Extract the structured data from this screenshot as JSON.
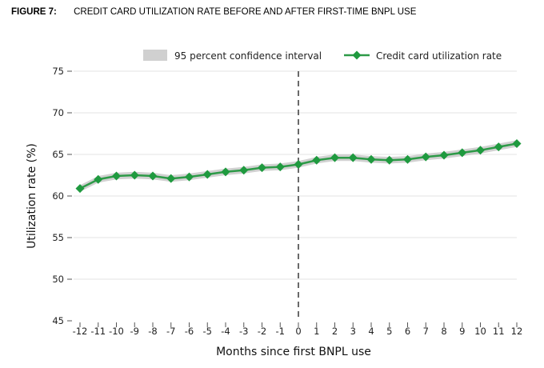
{
  "header": {
    "figure_label": "FIGURE 7:",
    "figure_title": "CREDIT CARD UTILIZATION RATE BEFORE AND AFTER FIRST-TIME BNPL USE"
  },
  "legend": {
    "ci_label": "95 percent confidence interval",
    "line_label": "Credit card utilization rate"
  },
  "colors": {
    "line": "#2e9a48",
    "marker": "#1f9a3f",
    "ci_band": "#c9c9c9",
    "grid": "#e3e3e3",
    "event_line": "#444444"
  },
  "chart_data": {
    "type": "line",
    "title": "CREDIT CARD UTILIZATION RATE BEFORE AND AFTER FIRST-TIME BNPL USE",
    "xlabel": "Months since first BNPL use",
    "ylabel": "Utilization rate (%)",
    "x": [
      -12,
      -11,
      -10,
      -9,
      -8,
      -7,
      -6,
      -5,
      -4,
      -3,
      -2,
      -1,
      0,
      1,
      2,
      3,
      4,
      5,
      6,
      7,
      8,
      9,
      10,
      11,
      12
    ],
    "x_tick_labels": [
      "-12",
      "-11",
      "-10",
      "-9",
      "-8",
      "-7",
      "-6",
      "-5",
      "-4",
      "-3",
      "-2",
      "-1",
      "0",
      "1",
      "2",
      "3",
      "4",
      "5",
      "6",
      "7",
      "8",
      "9",
      "10",
      "11",
      "12"
    ],
    "series": [
      {
        "name": "Credit card utilization rate",
        "values": [
          60.9,
          62.0,
          62.4,
          62.5,
          62.4,
          62.1,
          62.3,
          62.6,
          62.9,
          63.1,
          63.4,
          63.5,
          63.8,
          64.3,
          64.6,
          64.6,
          64.4,
          64.3,
          64.4,
          64.7,
          64.9,
          65.2,
          65.5,
          65.9,
          66.3
        ],
        "ci_lower": [
          60.5,
          61.6,
          62.0,
          62.1,
          62.0,
          61.7,
          61.9,
          62.2,
          62.5,
          62.7,
          63.0,
          63.1,
          63.4,
          63.9,
          64.2,
          64.2,
          64.0,
          63.9,
          64.0,
          64.3,
          64.5,
          64.8,
          65.1,
          65.5,
          65.9
        ],
        "ci_upper": [
          61.3,
          62.4,
          62.8,
          62.9,
          62.8,
          62.5,
          62.7,
          63.0,
          63.3,
          63.5,
          63.8,
          63.9,
          64.2,
          64.7,
          65.0,
          65.0,
          64.8,
          64.7,
          64.8,
          65.1,
          65.3,
          65.6,
          65.9,
          66.3,
          66.7
        ]
      }
    ],
    "ylim": [
      45,
      75
    ],
    "y_ticks": [
      45,
      50,
      55,
      60,
      65,
      70,
      75
    ],
    "y_tick_labels": [
      "45",
      "50",
      "55",
      "60",
      "65",
      "70",
      "75"
    ],
    "xlim": [
      -12,
      12
    ],
    "event_line_x": 0,
    "grid": true,
    "legend_position": "top-right"
  }
}
